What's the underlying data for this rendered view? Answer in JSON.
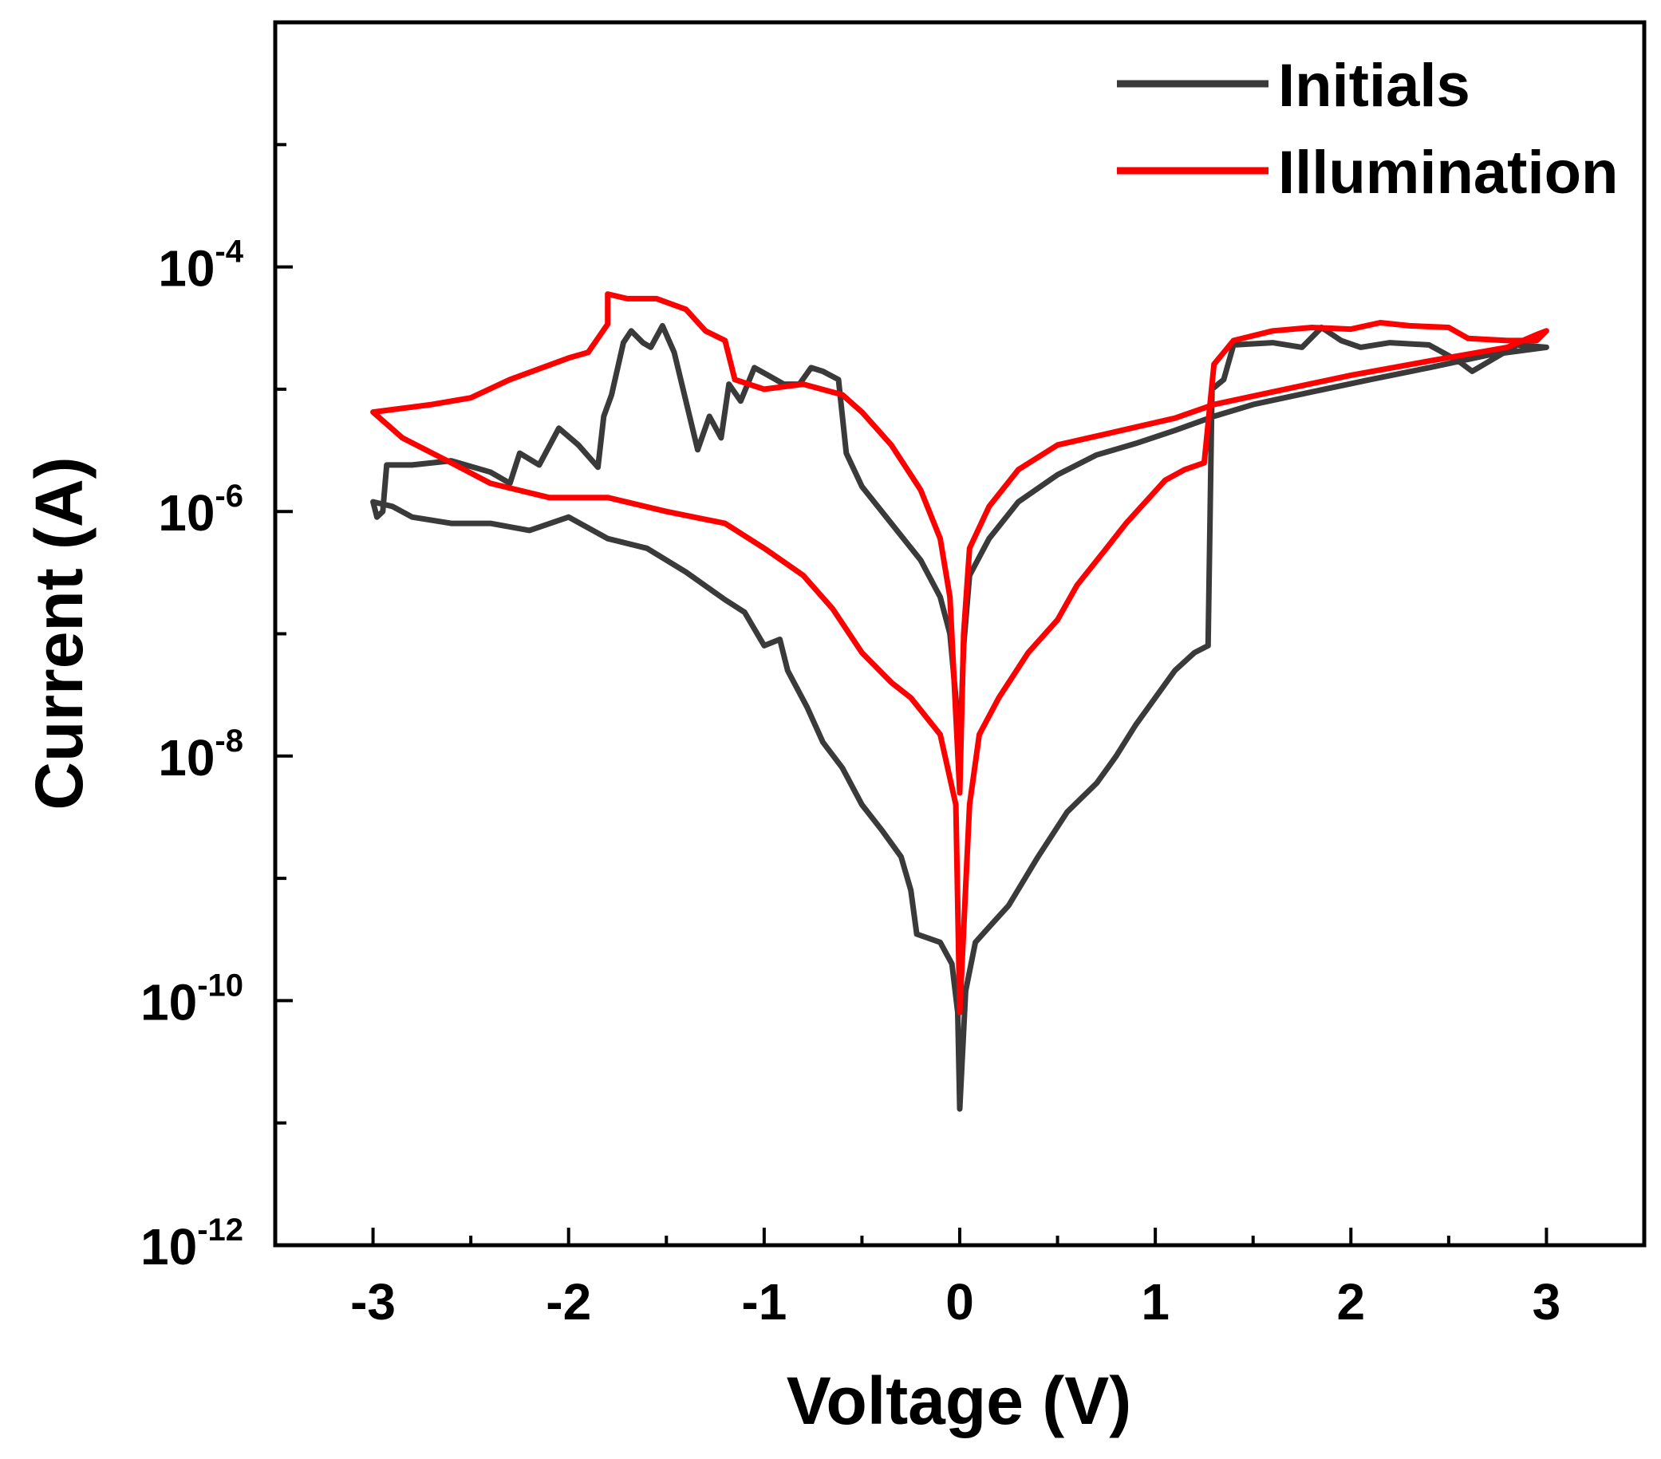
{
  "chart_data": {
    "type": "line",
    "title": "",
    "xlabel": "Voltage (V)",
    "ylabel": "Current (A)",
    "xlim": [
      -3.5,
      3.5
    ],
    "ylim": [
      1e-12,
      0.01
    ],
    "yscale": "log",
    "x_ticks": [
      -3,
      -2,
      -1,
      0,
      1,
      2,
      3
    ],
    "x_tick_labels": [
      "-3",
      "-2",
      "-1",
      "0",
      "1",
      "2",
      "3"
    ],
    "y_label_ticks": [
      {
        "value": 0.0001,
        "base": "10",
        "exp": "-4"
      },
      {
        "value": 1e-06,
        "base": "10",
        "exp": "-6"
      },
      {
        "value": 1e-08,
        "base": "10",
        "exp": "-8"
      },
      {
        "value": 1e-10,
        "base": "10",
        "exp": "-10"
      },
      {
        "value": 1e-12,
        "base": "10",
        "exp": "-12"
      }
    ],
    "y_minor_ticks": [
      1e-11,
      1e-09,
      1e-07,
      1e-05,
      0.001
    ],
    "grid": false,
    "legend_position": "top-right",
    "series": [
      {
        "name": "Initials",
        "color": "#3a3a3a",
        "points": [
          [
            -3.0,
            1.2e-06
          ],
          [
            -2.98,
            9e-07
          ],
          [
            -2.95,
            1e-06
          ],
          [
            -2.93,
            2.4e-06
          ],
          [
            -2.8,
            2.4e-06
          ],
          [
            -2.6,
            2.6e-06
          ],
          [
            -2.4,
            2.1e-06
          ],
          [
            -2.3,
            1.7e-06
          ],
          [
            -2.25,
            3e-06
          ],
          [
            -2.15,
            2.4e-06
          ],
          [
            -2.05,
            4.8e-06
          ],
          [
            -1.95,
            3.5e-06
          ],
          [
            -1.85,
            2.3e-06
          ],
          [
            -1.82,
            6e-06
          ],
          [
            -1.78,
            9e-06
          ],
          [
            -1.72,
            2.4e-05
          ],
          [
            -1.68,
            3e-05
          ],
          [
            -1.62,
            2.4e-05
          ],
          [
            -1.58,
            2.2e-05
          ],
          [
            -1.52,
            3.3e-05
          ],
          [
            -1.46,
            2e-05
          ],
          [
            -1.4,
            8e-06
          ],
          [
            -1.34,
            3.2e-06
          ],
          [
            -1.28,
            6e-06
          ],
          [
            -1.22,
            4e-06
          ],
          [
            -1.18,
            1.1e-05
          ],
          [
            -1.12,
            8e-06
          ],
          [
            -1.05,
            1.5e-05
          ],
          [
            -0.98,
            1.3e-05
          ],
          [
            -0.9,
            1.1e-05
          ],
          [
            -0.82,
            1.1e-05
          ],
          [
            -0.76,
            1.5e-05
          ],
          [
            -0.7,
            1.4e-05
          ],
          [
            -0.62,
            1.2e-05
          ],
          [
            -0.58,
            3e-06
          ],
          [
            -0.5,
            1.6e-06
          ],
          [
            -0.35,
            8e-07
          ],
          [
            -0.2,
            4e-07
          ],
          [
            -0.1,
            2e-07
          ],
          [
            -0.05,
            1e-07
          ],
          [
            -0.02,
            3e-08
          ],
          [
            0.0,
            1e-08
          ],
          [
            0.02,
            8e-08
          ],
          [
            0.05,
            3e-07
          ],
          [
            0.15,
            6e-07
          ],
          [
            0.3,
            1.2e-06
          ],
          [
            0.5,
            2e-06
          ],
          [
            0.7,
            2.9e-06
          ],
          [
            0.9,
            3.6e-06
          ],
          [
            1.1,
            4.6e-06
          ],
          [
            1.3,
            6e-06
          ],
          [
            1.5,
            7.5e-06
          ],
          [
            1.8,
            9.5e-06
          ],
          [
            2.1,
            1.2e-05
          ],
          [
            2.4,
            1.5e-05
          ],
          [
            2.7,
            1.9e-05
          ],
          [
            3.0,
            2.2e-05
          ],
          [
            2.85,
            2.3e-05
          ],
          [
            2.62,
            1.4e-05
          ],
          [
            2.55,
            1.7e-05
          ],
          [
            2.4,
            2.3e-05
          ],
          [
            2.2,
            2.4e-05
          ],
          [
            2.05,
            2.2e-05
          ],
          [
            1.95,
            2.5e-05
          ],
          [
            1.85,
            3.2e-05
          ],
          [
            1.75,
            2.2e-05
          ],
          [
            1.6,
            2.4e-05
          ],
          [
            1.4,
            2.3e-05
          ],
          [
            1.35,
            1.2e-05
          ],
          [
            1.29,
            1e-05
          ],
          [
            1.27,
            8e-08
          ],
          [
            1.2,
            7e-08
          ],
          [
            1.1,
            5e-08
          ],
          [
            1.0,
            3e-08
          ],
          [
            0.9,
            1.8e-08
          ],
          [
            0.8,
            1e-08
          ],
          [
            0.7,
            6e-09
          ],
          [
            0.55,
            3.5e-09
          ],
          [
            0.4,
            1.5e-09
          ],
          [
            0.25,
            6e-10
          ],
          [
            0.15,
            4e-10
          ],
          [
            0.08,
            3e-10
          ],
          [
            0.03,
            1.2e-10
          ],
          [
            0.0,
            1.3e-11
          ],
          [
            -0.01,
            8e-11
          ],
          [
            -0.04,
            2e-10
          ],
          [
            -0.1,
            3e-10
          ],
          [
            -0.22,
            3.5e-10
          ],
          [
            -0.25,
            8e-10
          ],
          [
            -0.3,
            1.5e-09
          ],
          [
            -0.4,
            2.5e-09
          ],
          [
            -0.5,
            4e-09
          ],
          [
            -0.6,
            8e-09
          ],
          [
            -0.7,
            1.3e-08
          ],
          [
            -0.78,
            2.5e-08
          ],
          [
            -0.88,
            5e-08
          ],
          [
            -0.92,
            9e-08
          ],
          [
            -1.0,
            8e-08
          ],
          [
            -1.1,
            1.5e-07
          ],
          [
            -1.2,
            1.9e-07
          ],
          [
            -1.4,
            3.2e-07
          ],
          [
            -1.6,
            5e-07
          ],
          [
            -1.8,
            6e-07
          ],
          [
            -2.0,
            9e-07
          ],
          [
            -2.2,
            7e-07
          ],
          [
            -2.4,
            8e-07
          ],
          [
            -2.6,
            8e-07
          ],
          [
            -2.8,
            9e-07
          ],
          [
            -2.9,
            1.1e-06
          ],
          [
            -3.0,
            1.2e-06
          ]
        ]
      },
      {
        "name": "Illumination",
        "color": "#ff0000",
        "points": [
          [
            -3.0,
            6.5e-06
          ],
          [
            -2.7,
            7.5e-06
          ],
          [
            -2.5,
            8.5e-06
          ],
          [
            -2.3,
            1.2e-05
          ],
          [
            -2.0,
            1.8e-05
          ],
          [
            -1.9,
            2e-05
          ],
          [
            -1.8,
            3.4e-05
          ],
          [
            -1.8,
            6e-05
          ],
          [
            -1.7,
            5.5e-05
          ],
          [
            -1.55,
            5.5e-05
          ],
          [
            -1.4,
            4.5e-05
          ],
          [
            -1.3,
            3e-05
          ],
          [
            -1.2,
            2.5e-05
          ],
          [
            -1.15,
            1.2e-05
          ],
          [
            -1.0,
            1e-05
          ],
          [
            -0.8,
            1.1e-05
          ],
          [
            -0.6,
            9e-06
          ],
          [
            -0.5,
            6.5e-06
          ],
          [
            -0.35,
            3.5e-06
          ],
          [
            -0.2,
            1.5e-06
          ],
          [
            -0.1,
            6e-07
          ],
          [
            -0.05,
            2e-07
          ],
          [
            0.0,
            5e-09
          ],
          [
            0.02,
            1e-07
          ],
          [
            0.05,
            5e-07
          ],
          [
            0.15,
            1.1e-06
          ],
          [
            0.3,
            2.2e-06
          ],
          [
            0.5,
            3.5e-06
          ],
          [
            0.8,
            4.5e-06
          ],
          [
            1.1,
            5.8e-06
          ],
          [
            1.3,
            7.5e-06
          ],
          [
            1.6,
            9.5e-06
          ],
          [
            2.0,
            1.3e-05
          ],
          [
            2.4,
            1.7e-05
          ],
          [
            2.8,
            2.2e-05
          ],
          [
            2.95,
            2.8e-05
          ],
          [
            3.0,
            3e-05
          ],
          [
            2.95,
            2.5e-05
          ],
          [
            2.8,
            2.5e-05
          ],
          [
            2.6,
            2.6e-05
          ],
          [
            2.5,
            3.2e-05
          ],
          [
            2.3,
            3.3e-05
          ],
          [
            2.15,
            3.5e-05
          ],
          [
            2.0,
            3.1e-05
          ],
          [
            1.8,
            3.2e-05
          ],
          [
            1.6,
            3e-05
          ],
          [
            1.4,
            2.5e-05
          ],
          [
            1.35,
            2e-05
          ],
          [
            1.3,
            1.6e-05
          ],
          [
            1.25,
            2.5e-06
          ],
          [
            1.15,
            2.2e-06
          ],
          [
            1.05,
            1.8e-06
          ],
          [
            0.95,
            1.2e-06
          ],
          [
            0.85,
            8e-07
          ],
          [
            0.75,
            5e-07
          ],
          [
            0.6,
            2.5e-07
          ],
          [
            0.5,
            1.3e-07
          ],
          [
            0.35,
            7e-08
          ],
          [
            0.2,
            3e-08
          ],
          [
            0.1,
            1.5e-08
          ],
          [
            0.05,
            4e-09
          ],
          [
            0.0,
            8e-11
          ],
          [
            -0.02,
            4e-09
          ],
          [
            -0.1,
            1.5e-08
          ],
          [
            -0.25,
            3e-08
          ],
          [
            -0.35,
            4e-08
          ],
          [
            -0.5,
            7e-08
          ],
          [
            -0.65,
            1.6e-07
          ],
          [
            -0.8,
            3e-07
          ],
          [
            -1.0,
            5e-07
          ],
          [
            -1.2,
            8e-07
          ],
          [
            -1.5,
            1e-06
          ],
          [
            -1.8,
            1.3e-06
          ],
          [
            -2.1,
            1.3e-06
          ],
          [
            -2.4,
            1.7e-06
          ],
          [
            -2.6,
            2.5e-06
          ],
          [
            -2.85,
            4e-06
          ],
          [
            -3.0,
            6.5e-06
          ]
        ]
      }
    ]
  }
}
